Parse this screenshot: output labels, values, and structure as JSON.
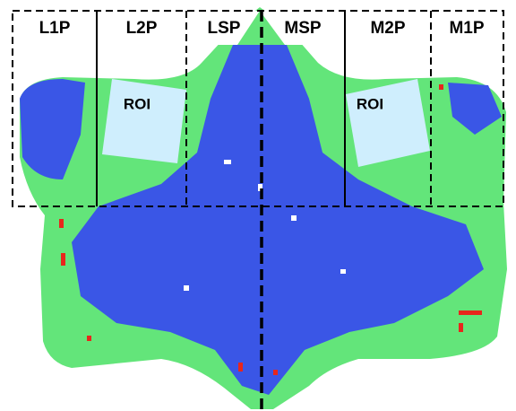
{
  "regions": [
    "L1P",
    "L2P",
    "LSP",
    "MSP",
    "M2P",
    "M1P"
  ],
  "roi": [
    "ROI",
    "ROI"
  ]
}
